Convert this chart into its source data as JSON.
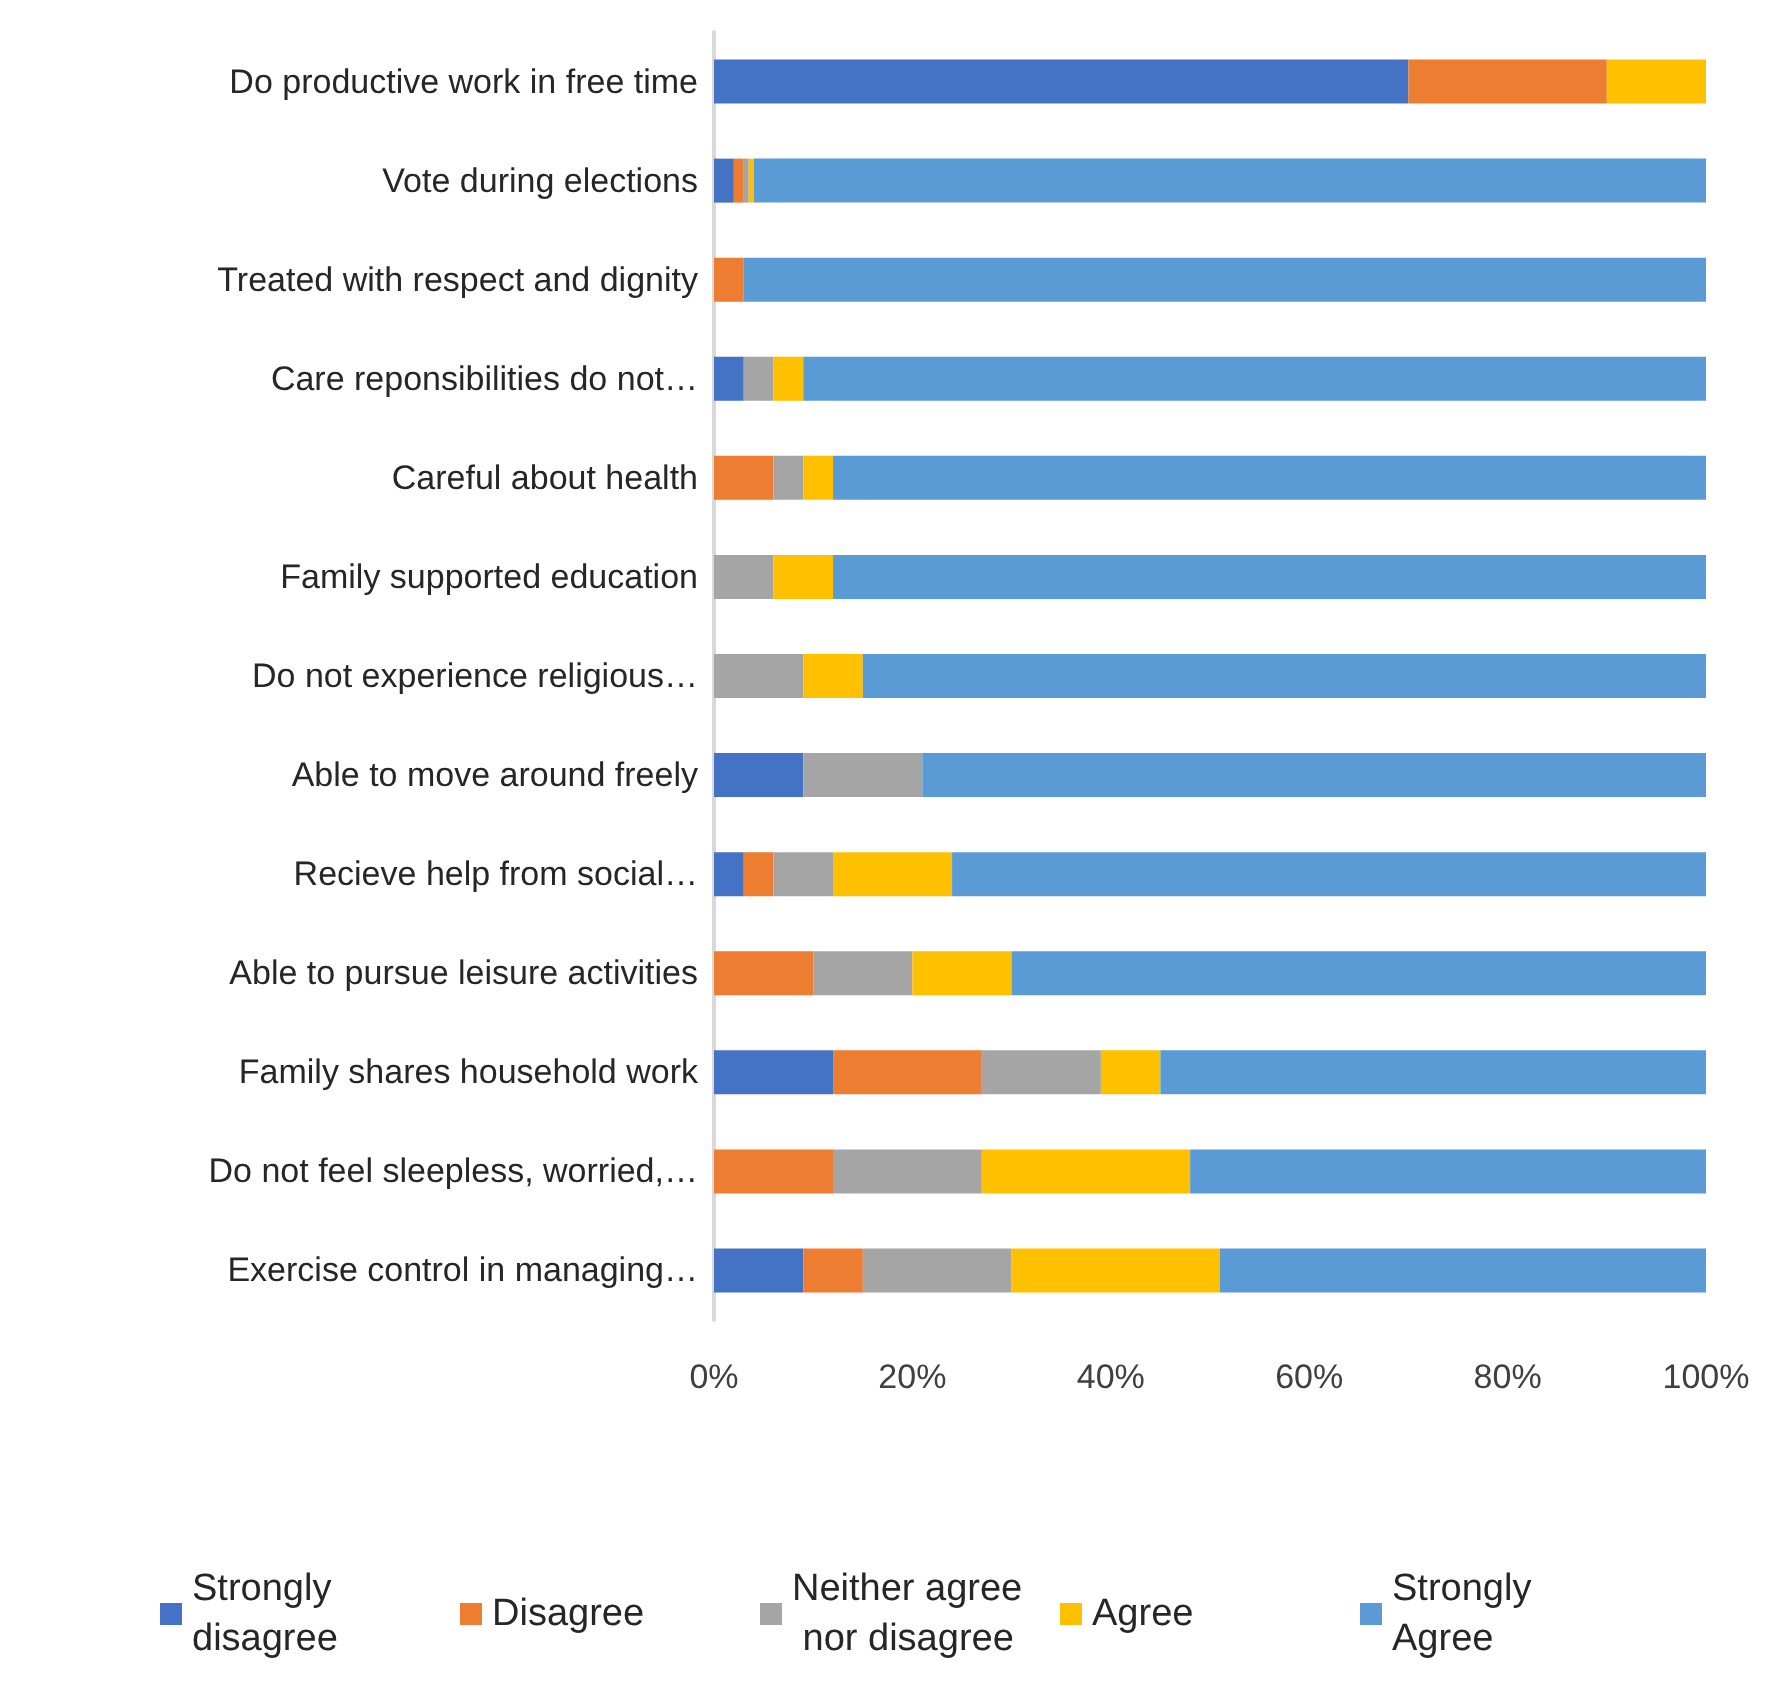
{
  "chart_data": {
    "type": "bar",
    "orientation": "horizontal",
    "stacked": true,
    "categories": [
      "Do productive work in free time",
      "Vote during elections",
      "Treated with respect and dignity",
      "Care reponsibilities do not…",
      "Careful about health",
      "Family supported education",
      "Do not experience religious…",
      "Able to move around freely",
      "Recieve help from social…",
      "Able to pursue leisure activities",
      "Family shares household work",
      "Do not feel sleepless, worried,…",
      "Exercise control in managing…"
    ],
    "series": [
      {
        "name": "Strongly disagree",
        "color": "#4472c4",
        "values": [
          70,
          2,
          0,
          3,
          0,
          0,
          0,
          9,
          3,
          0,
          12,
          0,
          9
        ]
      },
      {
        "name": "Disagree",
        "color": "#ed7d31",
        "values": [
          20,
          1,
          3,
          0,
          6,
          0,
          0,
          0,
          3,
          10,
          15,
          12,
          6
        ]
      },
      {
        "name": "Neither agree nor disagree",
        "color": "#a5a5a5",
        "values": [
          0,
          0.5,
          0,
          3,
          3,
          6,
          9,
          12,
          6,
          10,
          12,
          15,
          15
        ]
      },
      {
        "name": "Agree",
        "color": "#ffc000",
        "values": [
          10,
          0.5,
          0,
          3,
          3,
          6,
          6,
          0,
          12,
          10,
          6,
          21,
          21
        ]
      },
      {
        "name": "Strongly Agree",
        "color": "#5b9bd5",
        "values": [
          0,
          96,
          97,
          91,
          88,
          88,
          85,
          79,
          76,
          70,
          55,
          52,
          49
        ]
      }
    ],
    "xlim": [
      0,
      100
    ],
    "xticks": [
      {
        "value": 0,
        "label": "0%"
      },
      {
        "value": 20,
        "label": "20%"
      },
      {
        "value": 40,
        "label": "40%"
      },
      {
        "value": 60,
        "label": "60%"
      },
      {
        "value": 80,
        "label": "80%"
      },
      {
        "value": 100,
        "label": "100%"
      }
    ],
    "grid": false,
    "legend": "bottom"
  }
}
